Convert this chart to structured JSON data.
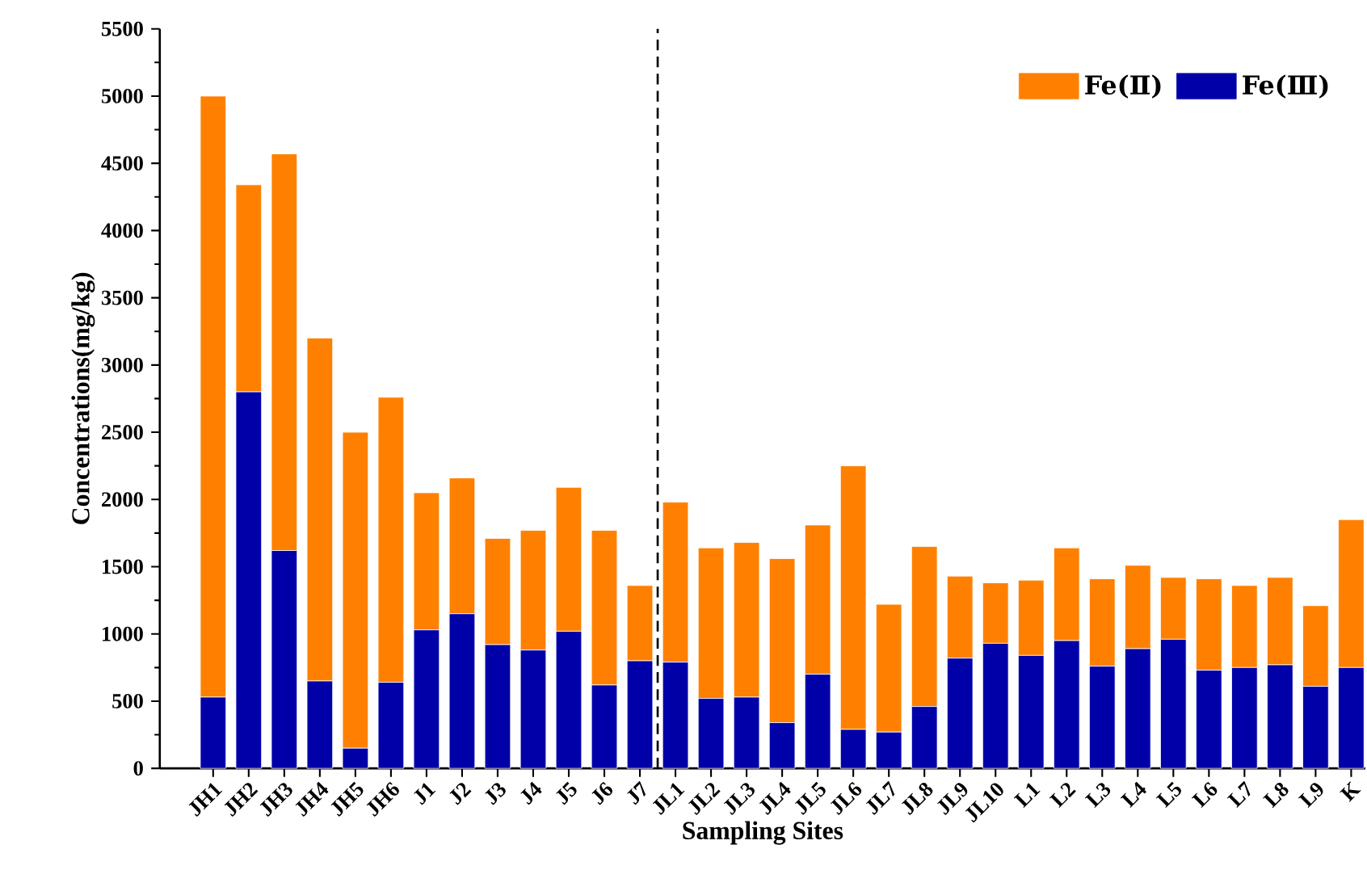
{
  "chart_data": {
    "type": "bar",
    "stacked": true,
    "xlabel": "Sampling Sites",
    "ylabel": "Concentrations(mg/kg)",
    "categories": [
      "JH1",
      "JH2",
      "JH3",
      "JH4",
      "JH5",
      "JH6",
      "J1",
      "J2",
      "J3",
      "J4",
      "J5",
      "J6",
      "J7",
      "JL1",
      "JL2",
      "JL3",
      "JL4",
      "JL5",
      "JL6",
      "JL7",
      "JL8",
      "JL9",
      "JL10",
      "L1",
      "L2",
      "L3",
      "L4",
      "L5",
      "L6",
      "L7",
      "L8",
      "L9",
      "K"
    ],
    "series": [
      {
        "name": "Fe(Ⅲ)",
        "color": "#0000a8",
        "values": [
          530,
          2800,
          1620,
          650,
          150,
          640,
          1030,
          1150,
          920,
          880,
          1020,
          620,
          800,
          790,
          520,
          530,
          340,
          700,
          290,
          270,
          460,
          820,
          930,
          840,
          950,
          760,
          890,
          960,
          730,
          750,
          770,
          610,
          750
        ]
      },
      {
        "name": "Fe(Ⅱ)",
        "color": "#ff8000",
        "values": [
          4470,
          1540,
          2950,
          2550,
          2350,
          2120,
          1020,
          1010,
          790,
          890,
          1070,
          1150,
          560,
          1190,
          1120,
          1150,
          1220,
          1110,
          1960,
          950,
          1190,
          610,
          450,
          560,
          690,
          650,
          620,
          460,
          680,
          610,
          650,
          600,
          1100
        ]
      }
    ],
    "ylim": [
      0,
      5500
    ],
    "yticks": [
      0,
      500,
      1000,
      1500,
      2000,
      2500,
      3000,
      3500,
      4000,
      4500,
      5000,
      5500
    ],
    "legend": "top right",
    "grid": false
  }
}
